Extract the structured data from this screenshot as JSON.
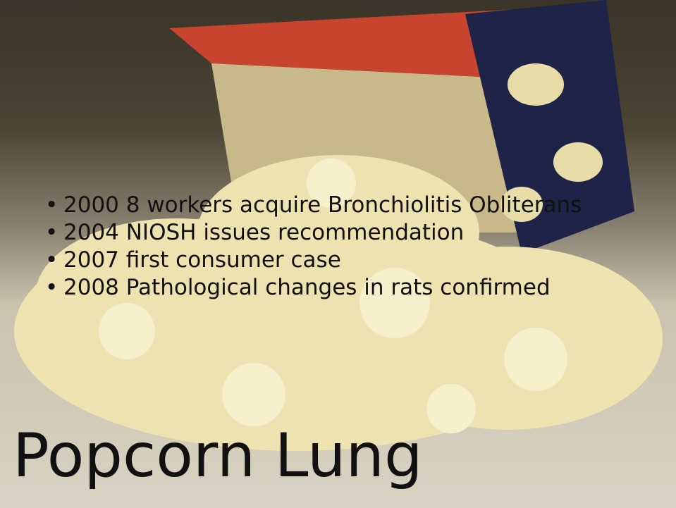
{
  "slide": {
    "title": "Popcorn Lung",
    "bullets": [
      "2000 8 workers acquire Bronchiolitis Obliterans",
      "2004 NIOSH issues recommendation",
      "2007 first consumer case",
      "2008 Pathological changes in rats confirmed"
    ]
  }
}
